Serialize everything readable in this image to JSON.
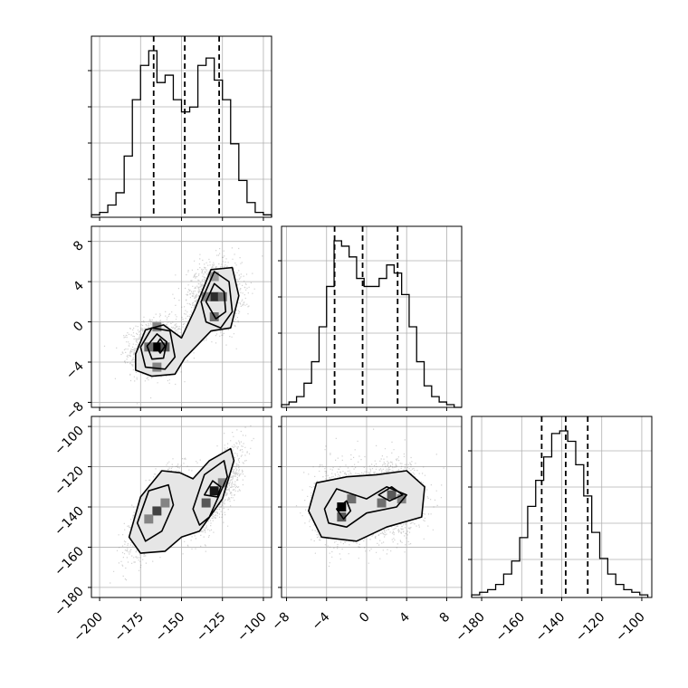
{
  "chart_data": {
    "type": "corner",
    "grid": true,
    "parameters": [
      {
        "range": [
          -205,
          -95
        ],
        "ticks": [
          -200,
          -175,
          -150,
          -125,
          -100
        ],
        "quantiles": [
          -167,
          -148,
          -127
        ]
      },
      {
        "range": [
          -8.5,
          9.5
        ],
        "ticks": [
          -8,
          -4,
          0,
          4,
          8
        ],
        "quantiles": [
          -3.2,
          -0.4,
          3.1
        ]
      },
      {
        "range": [
          -185,
          -95
        ],
        "ticks": [
          -180,
          -160,
          -140,
          -120,
          -100
        ],
        "quantiles": [
          -150,
          -138,
          -127
        ]
      }
    ],
    "histograms": [
      {
        "param": 0,
        "bin_edges": [
          -205,
          -200,
          -195,
          -190,
          -185,
          -180,
          -175,
          -170,
          -165,
          -160,
          -155,
          -150,
          -145,
          -140,
          -135,
          -130,
          -125,
          -120,
          -115,
          -110,
          -105,
          -100,
          -95
        ],
        "counts": [
          1,
          2,
          5,
          10,
          25,
          48,
          62,
          68,
          55,
          58,
          48,
          43,
          45,
          62,
          65,
          56,
          48,
          30,
          15,
          6,
          2,
          1
        ]
      },
      {
        "param": 1,
        "bin_edges": [
          -8.5,
          -7.75,
          -7,
          -6.25,
          -5.5,
          -4.75,
          -4,
          -3.25,
          -2.5,
          -1.75,
          -1,
          -0.25,
          0.5,
          1.25,
          2,
          2.75,
          3.5,
          4.25,
          5,
          5.75,
          6.5,
          7.25,
          8,
          8.75,
          9.5
        ],
        "counts": [
          1,
          2,
          4,
          9,
          17,
          30,
          45,
          62,
          60,
          56,
          48,
          45,
          45,
          48,
          53,
          50,
          42,
          30,
          17,
          8,
          4,
          2,
          1,
          0
        ]
      },
      {
        "param": 2,
        "bin_edges": [
          -185,
          -181,
          -177,
          -173,
          -169,
          -165,
          -161,
          -157,
          -153,
          -149,
          -145,
          -141,
          -137,
          -133,
          -129,
          -125,
          -121,
          -117,
          -113,
          -109,
          -105,
          -101,
          -97
        ],
        "counts": [
          1,
          2,
          3,
          5,
          9,
          14,
          23,
          35,
          45,
          54,
          63,
          64,
          60,
          51,
          39,
          25,
          15,
          9,
          5,
          3,
          2,
          1
        ]
      }
    ],
    "contour_panels": [
      {
        "x_param": 0,
        "y_param": 1,
        "sample_clusters": [
          {
            "center": [
              -165,
              -2.5
            ],
            "spread": [
              8,
              1.3
            ],
            "rho": 0.1,
            "n": 1500
          },
          {
            "center": [
              -130,
              2.5
            ],
            "spread": [
              8,
              1.6
            ],
            "rho": 0.1,
            "n": 1500
          }
        ],
        "contours": [
          [
            [
              -178,
              -3.2
            ],
            [
              -172,
              -0.8
            ],
            [
              -161,
              -0.3
            ],
            [
              -150,
              -1.6
            ],
            [
              -142,
              1.2
            ],
            [
              -132,
              5.2
            ],
            [
              -119,
              5.4
            ],
            [
              -115,
              2.6
            ],
            [
              -120,
              -0.6
            ],
            [
              -132,
              -0.9
            ],
            [
              -148,
              -3.6
            ],
            [
              -154,
              -5.2
            ],
            [
              -168,
              -5.4
            ],
            [
              -178,
              -4.8
            ]
          ],
          [
            [
              -175,
              -2.5
            ],
            [
              -168,
              -0.6
            ],
            [
              -157,
              -0.9
            ],
            [
              -154,
              -3.5
            ],
            [
              -160,
              -4.7
            ],
            [
              -172,
              -4.5
            ]
          ],
          [
            [
              -171,
              -2.4
            ],
            [
              -165,
              -1.2
            ],
            [
              -159,
              -2.0
            ],
            [
              -161,
              -3.6
            ],
            [
              -168,
              -3.7
            ]
          ],
          [
            [
              -166,
              -2.4
            ],
            [
              -163,
              -1.7
            ],
            [
              -160,
              -2.4
            ],
            [
              -163,
              -3.1
            ]
          ],
          [
            [
              -138,
              2.0
            ],
            [
              -130,
              5.0
            ],
            [
              -121,
              4.0
            ],
            [
              -119,
              1.0
            ],
            [
              -126,
              -0.6
            ],
            [
              -135,
              0.0
            ]
          ],
          [
            [
              -135,
              2.0
            ],
            [
              -130,
              3.8
            ],
            [
              -124,
              3.0
            ],
            [
              -123,
              1.0
            ],
            [
              -129,
              0.3
            ]
          ]
        ],
        "density_cells": [
          [
            -165,
            -2.5,
            1.0
          ],
          [
            -160,
            -2.5,
            0.6
          ],
          [
            -170,
            -2.5,
            0.5
          ],
          [
            -165,
            -0.5,
            0.4
          ],
          [
            -165,
            -4.5,
            0.4
          ],
          [
            -130,
            2.5,
            0.8
          ],
          [
            -130,
            0.5,
            0.5
          ],
          [
            -125,
            2.5,
            0.5
          ],
          [
            -135,
            2.5,
            0.4
          ],
          [
            -130,
            4.5,
            0.3
          ]
        ]
      },
      {
        "x_param": 0,
        "y_param": 2,
        "sample_clusters": [
          {
            "center": [
              -165,
              -142
            ],
            "spread": [
              8,
              10
            ],
            "rho": 0.7,
            "n": 1500
          },
          {
            "center": [
              -130,
              -132
            ],
            "spread": [
              8,
              10
            ],
            "rho": 0.7,
            "n": 1500
          }
        ],
        "contours": [
          [
            [
              -182,
              -155
            ],
            [
              -175,
              -135
            ],
            [
              -162,
              -122
            ],
            [
              -151,
              -123
            ],
            [
              -143,
              -126
            ],
            [
              -133,
              -117
            ],
            [
              -120,
              -111
            ],
            [
              -118,
              -117
            ],
            [
              -125,
              -136
            ],
            [
              -139,
              -152
            ],
            [
              -150,
              -155
            ],
            [
              -160,
              -162
            ],
            [
              -175,
              -163
            ]
          ],
          [
            [
              -177,
              -148
            ],
            [
              -170,
              -132
            ],
            [
              -158,
              -129
            ],
            [
              -155,
              -139
            ],
            [
              -162,
              -152
            ],
            [
              -172,
              -157
            ]
          ],
          [
            [
              -143,
              -141
            ],
            [
              -136,
              -124
            ],
            [
              -124,
              -117
            ],
            [
              -122,
              -125
            ],
            [
              -133,
              -145
            ],
            [
              -139,
              -149
            ]
          ],
          [
            [
              -136,
              -134
            ],
            [
              -131,
              -127
            ],
            [
              -126,
              -130
            ],
            [
              -128,
              -135
            ]
          ]
        ],
        "density_cells": [
          [
            -165,
            -142,
            0.7
          ],
          [
            -160,
            -138,
            0.4
          ],
          [
            -170,
            -146,
            0.4
          ],
          [
            -130,
            -132,
            0.9
          ],
          [
            -135,
            -138,
            0.6
          ],
          [
            -125,
            -128,
            0.4
          ]
        ]
      },
      {
        "x_param": 1,
        "y_param": 2,
        "sample_clusters": [
          {
            "center": [
              -2.5,
              -140
            ],
            "spread": [
              1.4,
              9
            ],
            "rho": 0.0,
            "n": 1500
          },
          {
            "center": [
              2.5,
              -136
            ],
            "spread": [
              1.6,
              9
            ],
            "rho": 0.0,
            "n": 1500
          }
        ],
        "contours": [
          [
            [
              -5.8,
              -142
            ],
            [
              -5.0,
              -128
            ],
            [
              -2.0,
              -125
            ],
            [
              1.0,
              -124
            ],
            [
              4.0,
              -122
            ],
            [
              5.8,
              -130
            ],
            [
              5.5,
              -145
            ],
            [
              2.0,
              -150
            ],
            [
              -1.0,
              -157
            ],
            [
              -4.5,
              -155
            ]
          ],
          [
            [
              -4.2,
              -141
            ],
            [
              -3.0,
              -131
            ],
            [
              0.0,
              -136
            ],
            [
              2.0,
              -130
            ],
            [
              4.0,
              -134
            ],
            [
              3.0,
              -140
            ],
            [
              0.0,
              -143
            ],
            [
              -2.0,
              -150
            ],
            [
              -3.8,
              -148
            ]
          ],
          [
            [
              -3.0,
              -141
            ],
            [
              -2.0,
              -137
            ],
            [
              -1.6,
              -142
            ],
            [
              -2.3,
              -146
            ]
          ],
          [
            [
              1.2,
              -134
            ],
            [
              2.5,
              -130
            ],
            [
              3.6,
              -134
            ],
            [
              2.3,
              -137
            ]
          ]
        ],
        "density_cells": [
          [
            -2.5,
            -140,
            1.0
          ],
          [
            -2.5,
            -145,
            0.6
          ],
          [
            -1.5,
            -136,
            0.5
          ],
          [
            2.5,
            -134,
            0.6
          ],
          [
            1.5,
            -138,
            0.5
          ],
          [
            3.5,
            -136,
            0.4
          ]
        ]
      }
    ]
  }
}
